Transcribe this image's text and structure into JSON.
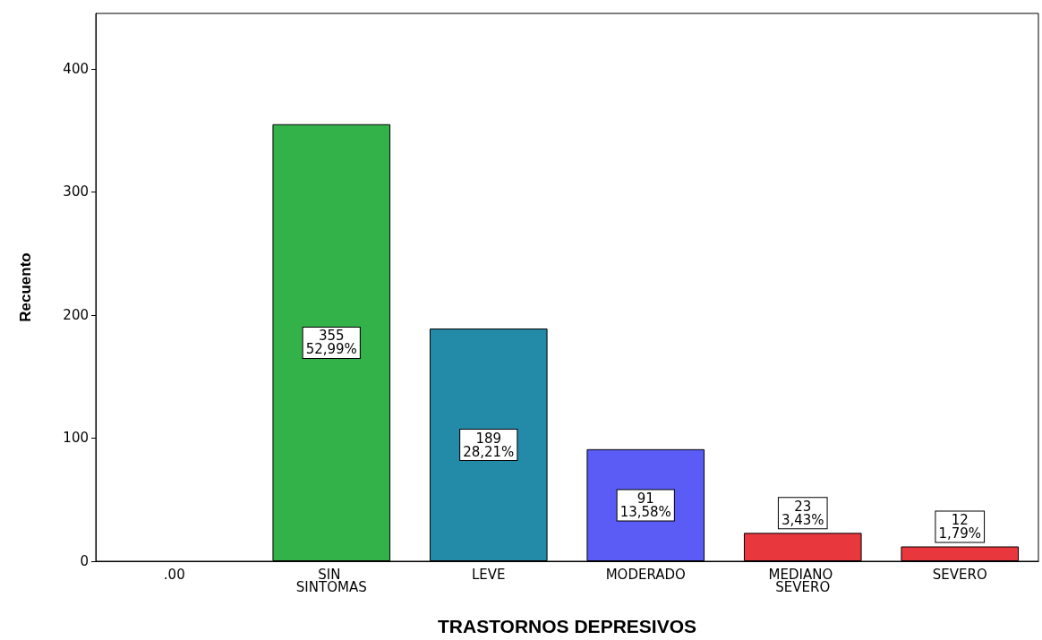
{
  "chart_data": {
    "type": "bar",
    "xlabel": "TRASTORNOS DEPRESIVOS",
    "ylabel": "Recuento",
    "categories": [
      ".00",
      "SIN SINTOMAS",
      "LEVE",
      "MODERADO",
      "MEDIANO SEVERO",
      "SEVERO"
    ],
    "values": [
      null,
      355,
      189,
      91,
      23,
      12
    ],
    "colors": [
      "#33b24a",
      "#33b24a",
      "#238aa8",
      "#5a5cf5",
      "#e8373d",
      "#e8373d"
    ],
    "value_labels": [
      null,
      "355\n52,99%",
      "189\n28,21%",
      "91\n13,58%",
      "23\n3,43%",
      "12\n1,79%"
    ],
    "ylim": [
      0,
      445
    ],
    "yticks": [
      0,
      100,
      200,
      300,
      400
    ],
    "grid": false
  }
}
